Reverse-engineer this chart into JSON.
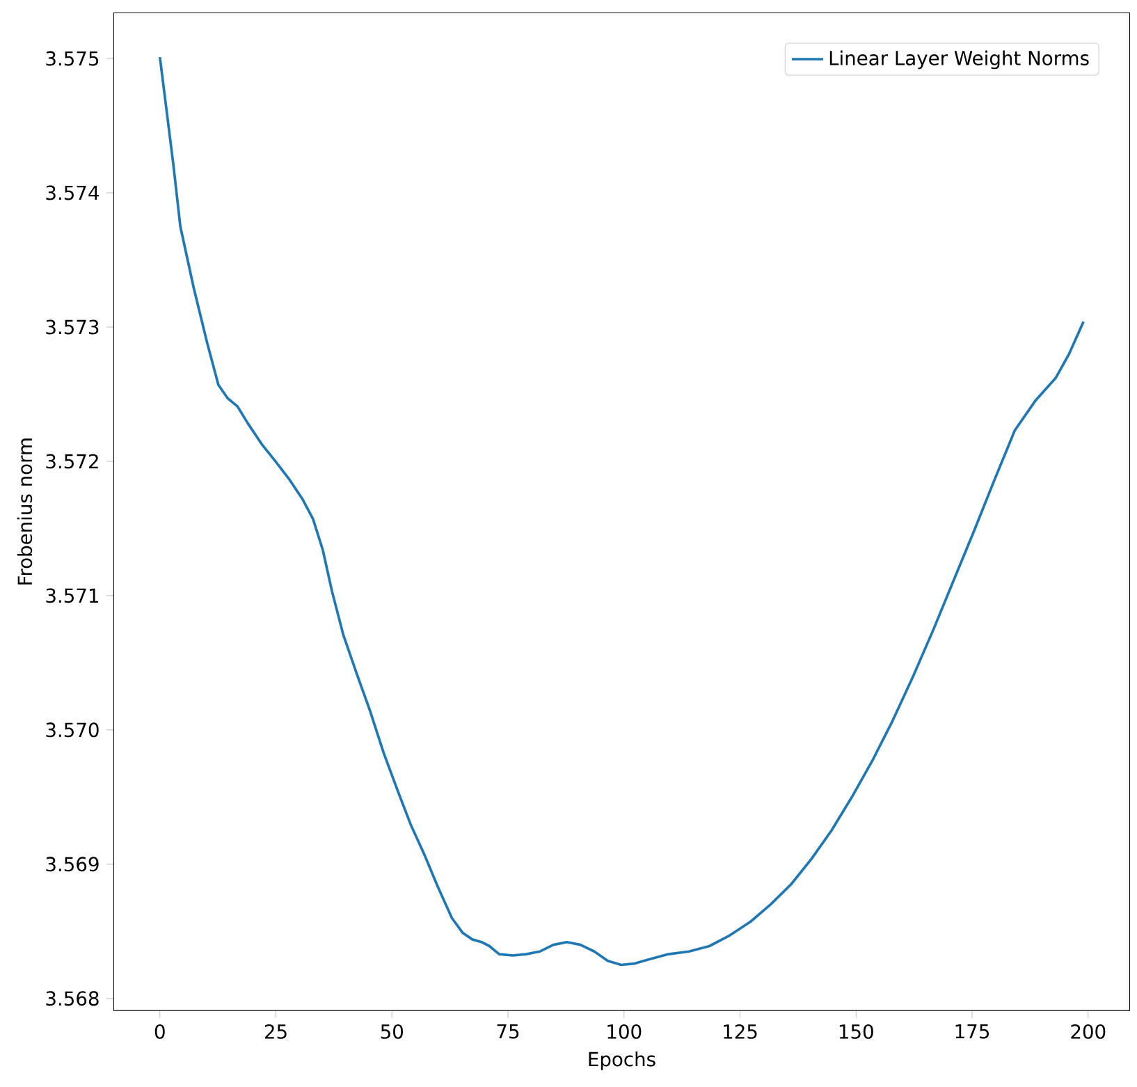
{
  "chart_data": {
    "type": "line",
    "xlabel": "Epochs",
    "ylabel": "Frobenius norm",
    "xlim": [
      -9.95,
      208.95
    ],
    "ylim": [
      3.56791,
      3.57534
    ],
    "xticks": [
      0,
      25,
      50,
      75,
      100,
      125,
      150,
      175,
      200
    ],
    "yticks": [
      3.568,
      3.569,
      {
        "value": 3.57,
        "label": "3.570"
      },
      3.571,
      3.572,
      3.573,
      3.574,
      3.575
    ],
    "legend": "top right",
    "grid": false,
    "x": [
      0,
      2.9,
      4.4,
      7.3,
      10.2,
      12.6,
      14.6,
      16.7,
      19,
      21.9,
      24.9,
      27.8,
      30.7,
      33,
      35.1,
      37.1,
      39.5,
      42.4,
      45.3,
      48.2,
      51.2,
      54.1,
      57,
      59.9,
      62.9,
      65.2,
      67.3,
      69.3,
      71,
      73.1,
      76,
      78.9,
      81.9,
      84.8,
      87.7,
      90.6,
      93.6,
      96.5,
      99.4,
      102.3,
      105.3,
      109.6,
      114,
      118.4,
      122.8,
      127.2,
      131.6,
      136,
      140.4,
      144.7,
      149.1,
      153.5,
      157.9,
      162.3,
      166.7,
      171.1,
      175.4,
      179.8,
      184.2,
      188.6,
      193,
      195.9,
      199
    ],
    "series": [
      {
        "name": "Linear Layer Weight Norms",
        "color": "#1f77b4",
        "values": [
          3.57501,
          3.57421,
          3.57375,
          3.57329,
          3.57288,
          3.57257,
          3.57247,
          3.57241,
          3.57228,
          3.57213,
          3.572,
          3.57187,
          3.57172,
          3.57157,
          3.57134,
          3.57103,
          3.57071,
          3.57042,
          3.57014,
          3.56983,
          3.56955,
          3.56929,
          3.56907,
          3.56883,
          3.5686,
          3.56849,
          3.56844,
          3.56842,
          3.56839,
          3.56833,
          3.56832,
          3.56833,
          3.56835,
          3.5684,
          3.56842,
          3.5684,
          3.56835,
          3.56828,
          3.56825,
          3.56826,
          3.56829,
          3.56833,
          3.56835,
          3.56839,
          3.56847,
          3.56857,
          3.5687,
          3.56885,
          3.56904,
          3.56925,
          3.5695,
          3.56977,
          3.57007,
          3.5704,
          3.57075,
          3.57112,
          3.57148,
          3.57186,
          3.57223,
          3.57245,
          3.57262,
          3.5728,
          3.57304
        ]
      }
    ]
  }
}
